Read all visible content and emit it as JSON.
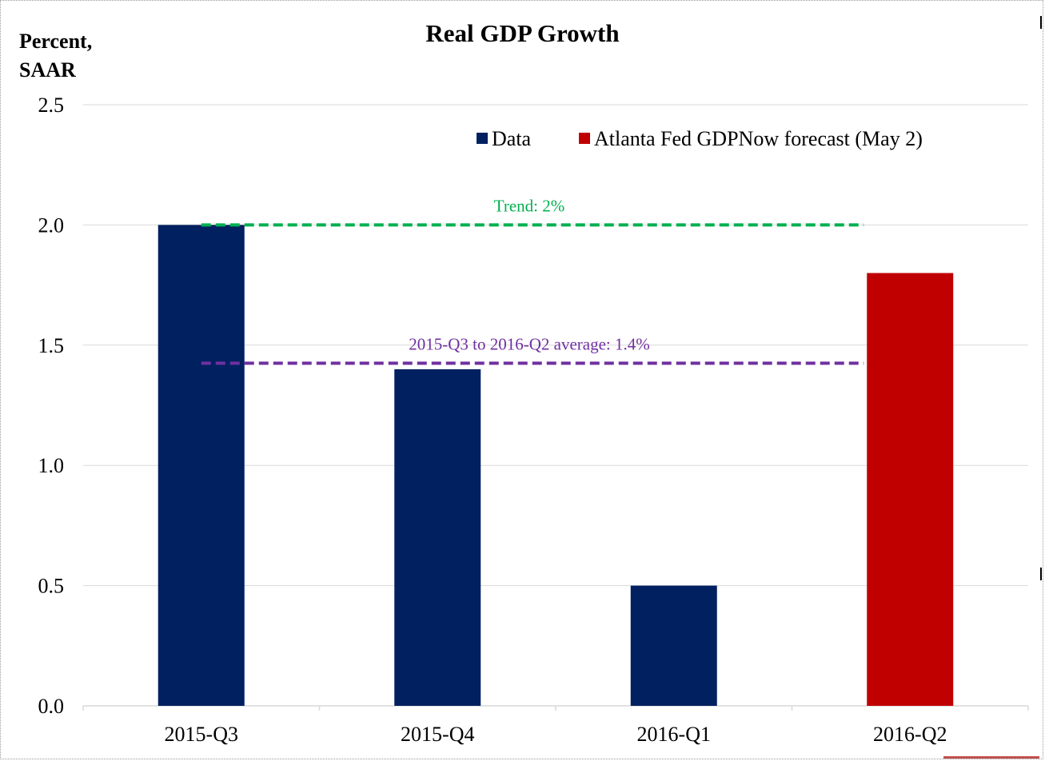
{
  "chart_data": {
    "type": "bar",
    "title": "Real GDP Growth",
    "ylabel_lines": [
      "Percent,",
      "SAAR"
    ],
    "xlabel": "",
    "categories": [
      "2015-Q3",
      "2015-Q4",
      "2016-Q1",
      "2016-Q2"
    ],
    "values": [
      2.0,
      1.4,
      0.5,
      1.8
    ],
    "bar_series": [
      "Data",
      "Data",
      "Data",
      "Atlanta Fed GDPNow forecast (May 2)"
    ],
    "series": [
      {
        "name": "Data",
        "color": "#002060"
      },
      {
        "name": "Atlanta Fed GDPNow forecast (May 2)",
        "color": "#c00000"
      }
    ],
    "ylim": [
      0,
      2.5
    ],
    "yticks": [
      {
        "value": 0.0,
        "label": "0.0"
      },
      {
        "value": 0.5,
        "label": "0.5"
      },
      {
        "value": 1.0,
        "label": "1.0"
      },
      {
        "value": 1.5,
        "label": "1.5"
      },
      {
        "value": 2.0,
        "label": "2.0"
      },
      {
        "value": 2.5,
        "label": "2.5"
      }
    ],
    "grid": true,
    "legend_position": "top-right",
    "reference_lines": [
      {
        "label": "Trend: 2%",
        "value": 2.0,
        "color": "#00b050"
      },
      {
        "label": "2015-Q3  to  2016-Q2  average:  1.4%",
        "value": 1.425,
        "color": "#7030a0"
      }
    ]
  }
}
